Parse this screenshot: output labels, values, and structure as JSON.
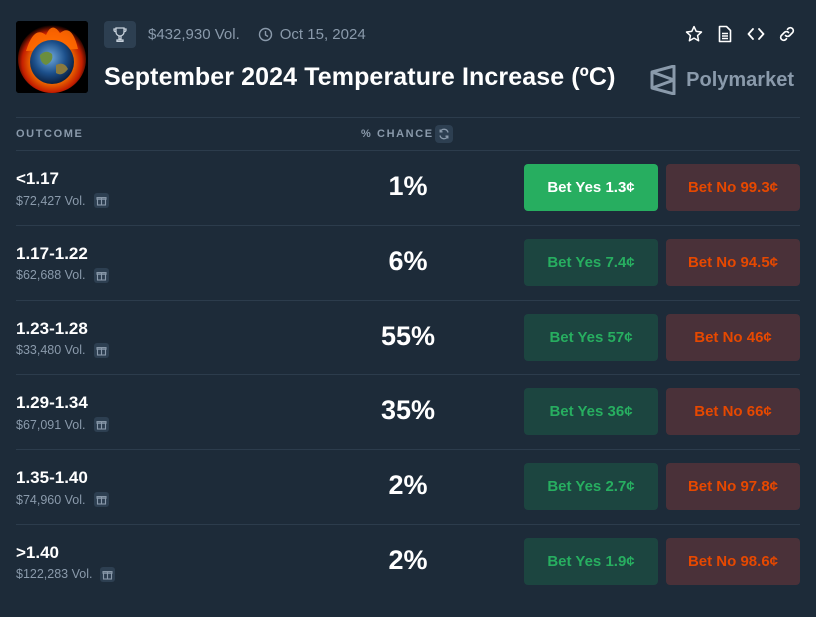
{
  "market": {
    "volume": "$432,930 Vol.",
    "date": "Oct 15, 2024",
    "title": "September 2024 Temperature Increase (ºC)",
    "brand": "Polymarket"
  },
  "table": {
    "header_outcome": "OUTCOME",
    "header_chance": "% CHANCE",
    "rows": [
      {
        "outcome": "<1.17",
        "volume": "$72,427 Vol.",
        "chance": "1%",
        "yes": "Bet Yes 1.3¢",
        "no": "Bet No 99.3¢"
      },
      {
        "outcome": "1.17-1.22",
        "volume": "$62,688 Vol.",
        "chance": "6%",
        "yes": "Bet Yes 7.4¢",
        "no": "Bet No 94.5¢"
      },
      {
        "outcome": "1.23-1.28",
        "volume": "$33,480 Vol.",
        "chance": "55%",
        "yes": "Bet Yes 57¢",
        "no": "Bet No 46¢"
      },
      {
        "outcome": "1.29-1.34",
        "volume": "$67,091 Vol.",
        "chance": "35%",
        "yes": "Bet Yes 36¢",
        "no": "Bet No 66¢"
      },
      {
        "outcome": "1.35-1.40",
        "volume": "$74,960 Vol.",
        "chance": "2%",
        "yes": "Bet Yes 2.7¢",
        "no": "Bet No 97.8¢"
      },
      {
        "outcome": ">1.40",
        "volume": "$122,283 Vol.",
        "chance": "2%",
        "yes": "Bet Yes 1.9¢",
        "no": "Bet No 98.6¢"
      }
    ]
  },
  "colors": {
    "background": "#1d2b39",
    "yes_accent": "#27ae60",
    "no_accent": "#e64800"
  },
  "icons": [
    "trophy-icon",
    "clock-icon",
    "star-icon",
    "document-icon",
    "code-icon",
    "link-icon",
    "polymarket-logo-icon",
    "refresh-icon",
    "gift-icon"
  ]
}
